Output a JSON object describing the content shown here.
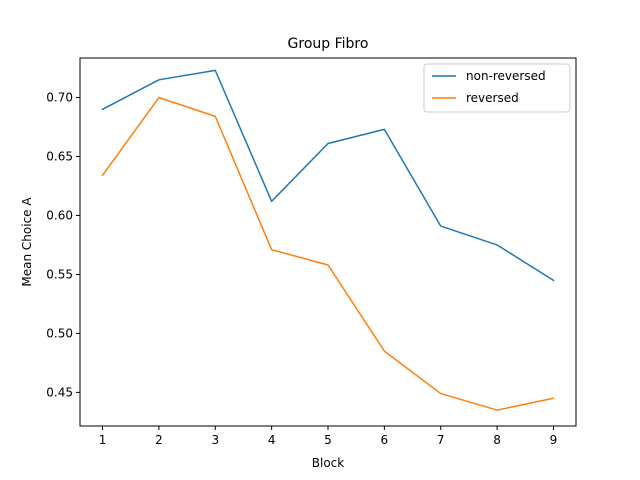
{
  "chart_data": {
    "type": "line",
    "title": "Group Fibro",
    "xlabel": "Block",
    "ylabel": "Mean Choice A",
    "x": [
      1,
      2,
      3,
      4,
      5,
      6,
      7,
      8,
      9
    ],
    "xticks": [
      "1",
      "2",
      "3",
      "4",
      "5",
      "6",
      "7",
      "8",
      "9"
    ],
    "yticks": [
      0.45,
      0.5,
      0.55,
      0.6,
      0.65,
      0.7
    ],
    "ytick_labels": [
      "0.45",
      "0.50",
      "0.55",
      "0.60",
      "0.65",
      "0.70"
    ],
    "xlim": [
      0.6,
      9.4
    ],
    "ylim": [
      0.4215,
      0.7335
    ],
    "grid": false,
    "legend_position": "top-right",
    "series": [
      {
        "name": "non-reversed",
        "color": "#1f77b4",
        "values": [
          0.69,
          0.715,
          0.723,
          0.612,
          0.661,
          0.673,
          0.591,
          0.575,
          0.545
        ]
      },
      {
        "name": "reversed",
        "color": "#ff7f0e",
        "values": [
          0.634,
          0.7,
          0.684,
          0.571,
          0.558,
          0.485,
          0.449,
          0.435,
          0.445
        ]
      }
    ]
  }
}
